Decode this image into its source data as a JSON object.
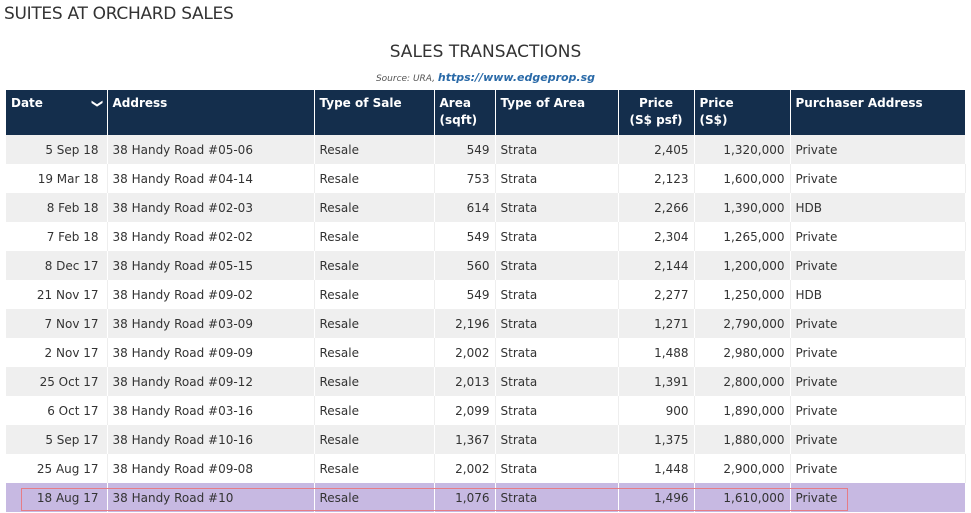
{
  "page_title": "SUITES AT ORCHARD SALES",
  "section_title": "SALES TRANSACTIONS",
  "source_label": "Source: URA,",
  "source_link": "https://www.edgeprop.sg",
  "columns": [
    "Date",
    "Address",
    "Type of Sale",
    "Area (sqft)",
    "Type of Area",
    "Price (S$ psf)",
    "Price (S$)",
    "Purchaser Address"
  ],
  "header": {
    "date": "Date",
    "address": "Address",
    "type_of_sale": "Type of Sale",
    "area": "Area",
    "area_unit": "(sqft)",
    "type_of_area": "Type of Area",
    "price_psf": "Price",
    "price_psf_unit": "(S$ psf)",
    "price": "Price",
    "price_unit": "(S$)",
    "purchaser": "Purchaser Address"
  },
  "sort_icon": "chevron-down-icon",
  "highlight_color": "#c7b9e2",
  "rows": [
    [
      "5 Sep 18",
      "38 Handy Road #05-06",
      "Resale",
      "549",
      "Strata",
      "2,405",
      "1,320,000",
      "Private"
    ],
    [
      "19 Mar 18",
      "38 Handy Road #04-14",
      "Resale",
      "753",
      "Strata",
      "2,123",
      "1,600,000",
      "Private"
    ],
    [
      "8 Feb 18",
      "38 Handy Road #02-03",
      "Resale",
      "614",
      "Strata",
      "2,266",
      "1,390,000",
      "HDB"
    ],
    [
      "7 Feb 18",
      "38 Handy Road #02-02",
      "Resale",
      "549",
      "Strata",
      "2,304",
      "1,265,000",
      "Private"
    ],
    [
      "8 Dec 17",
      "38 Handy Road #05-15",
      "Resale",
      "560",
      "Strata",
      "2,144",
      "1,200,000",
      "Private"
    ],
    [
      "21 Nov 17",
      "38 Handy Road #09-02",
      "Resale",
      "549",
      "Strata",
      "2,277",
      "1,250,000",
      "HDB"
    ],
    [
      "7 Nov 17",
      "38 Handy Road #03-09",
      "Resale",
      "2,196",
      "Strata",
      "1,271",
      "2,790,000",
      "Private"
    ],
    [
      "2 Nov 17",
      "38 Handy Road #09-09",
      "Resale",
      "2,002",
      "Strata",
      "1,488",
      "2,980,000",
      "Private"
    ],
    [
      "25 Oct 17",
      "38 Handy Road #09-12",
      "Resale",
      "2,013",
      "Strata",
      "1,391",
      "2,800,000",
      "Private"
    ],
    [
      "6 Oct 17",
      "38 Handy Road #03-16",
      "Resale",
      "2,099",
      "Strata",
      "900",
      "1,890,000",
      "Private"
    ],
    [
      "5 Sep 17",
      "38 Handy Road #10-16",
      "Resale",
      "1,367",
      "Strata",
      "1,375",
      "1,880,000",
      "Private"
    ],
    [
      "25 Aug 17",
      "38 Handy Road #09-08",
      "Resale",
      "2,002",
      "Strata",
      "1,448",
      "2,900,000",
      "Private"
    ],
    [
      "18 Aug 17",
      "38 Handy Road #10",
      "Resale",
      "1,076",
      "Strata",
      "1,496",
      "1,610,000",
      "Private"
    ]
  ],
  "highlighted_row": 12
}
